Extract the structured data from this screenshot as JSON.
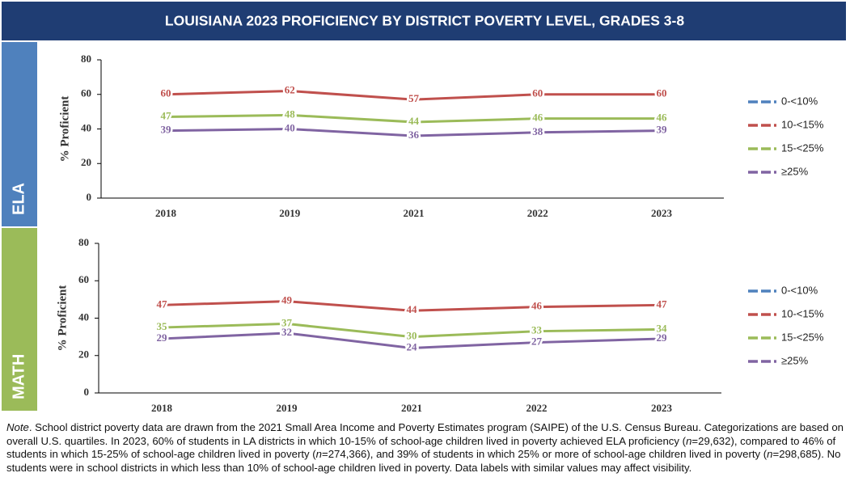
{
  "page_title": "LOUISIANA 2023 PROFICIENCY BY DISTRICT POVERTY LEVEL, GRADES 3-8",
  "chart_data": [
    {
      "type": "line",
      "panel_label": "ELA",
      "ylabel": "% Proficient",
      "categories": [
        "2018",
        "2019",
        "2021",
        "2022",
        "2023"
      ],
      "ylim": [
        0,
        80
      ],
      "yticks": [
        0,
        20,
        40,
        60,
        80
      ],
      "series": [
        {
          "name": "0-<10%",
          "color": "#4f81bd",
          "values": [
            null,
            null,
            null,
            null,
            null
          ]
        },
        {
          "name": "10-<15%",
          "color": "#c0504d",
          "values": [
            60,
            62,
            57,
            60,
            60
          ]
        },
        {
          "name": "15-<25%",
          "color": "#9bbb59",
          "values": [
            47,
            48,
            44,
            46,
            46
          ]
        },
        {
          "name": "≥25%",
          "color": "#8064a2",
          "values": [
            39,
            40,
            36,
            38,
            39
          ]
        }
      ]
    },
    {
      "type": "line",
      "panel_label": "MATH",
      "ylabel": "% Proficient",
      "categories": [
        "2018",
        "2019",
        "2021",
        "2022",
        "2023"
      ],
      "ylim": [
        0,
        80
      ],
      "yticks": [
        0,
        20,
        40,
        60,
        80
      ],
      "series": [
        {
          "name": "0-<10%",
          "color": "#4f81bd",
          "values": [
            null,
            null,
            null,
            null,
            null
          ]
        },
        {
          "name": "10-<15%",
          "color": "#c0504d",
          "values": [
            47,
            49,
            44,
            46,
            47
          ]
        },
        {
          "name": "15-<25%",
          "color": "#9bbb59",
          "values": [
            35,
            37,
            30,
            33,
            34
          ]
        },
        {
          "name": "≥25%",
          "color": "#8064a2",
          "values": [
            29,
            32,
            24,
            27,
            29
          ]
        }
      ]
    }
  ],
  "note": [
    {
      "text": "Note",
      "italic": true
    },
    {
      "text": ". School district poverty data are drawn from the 2021 Small Area Income and Poverty Estimates program (SAIPE) of the U.S. Census Bureau. Categorizations are based on overall U.S. quartiles. In 2023, 60% of students in LA districts in which 10-15% of school-age children lived in poverty achieved ELA proficiency (",
      "italic": false
    },
    {
      "text": "n",
      "italic": true
    },
    {
      "text": "=29,632), compared to 46% of students in which 15-25% of school-age children lived in poverty (",
      "italic": false
    },
    {
      "text": "n",
      "italic": true
    },
    {
      "text": "=274,366), and 39% of students in which 25% or more of school-age children lived in poverty (",
      "italic": false
    },
    {
      "text": "n",
      "italic": true
    },
    {
      "text": "=298,685). No students were in school districts in which less than 10% of school-age children lived in poverty.  Data labels with similar values may affect visibility.",
      "italic": false
    }
  ]
}
